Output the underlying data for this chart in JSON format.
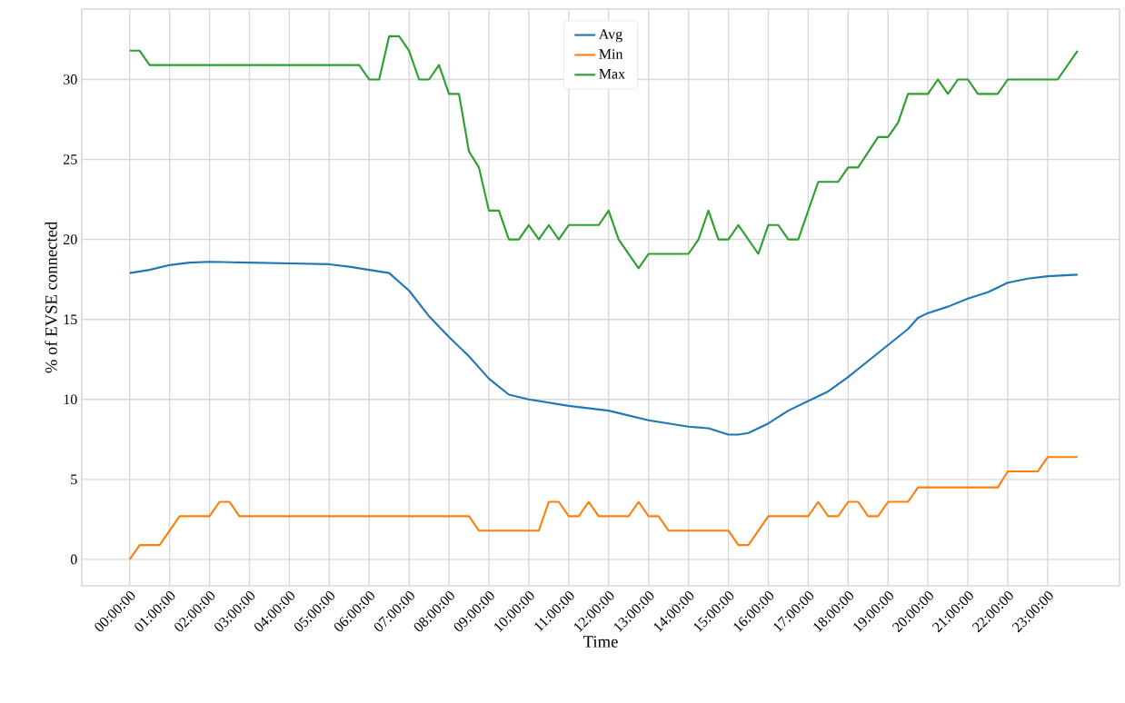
{
  "chart_data": {
    "type": "line",
    "xlabel": "Time",
    "ylabel": "% of EVSE connected",
    "xlim": [
      -1.2,
      24.8
    ],
    "ylim": [
      -1.65,
      34.4
    ],
    "xticks": [
      {
        "value": 0,
        "label": "00:00:00"
      },
      {
        "value": 1,
        "label": "01:00:00"
      },
      {
        "value": 2,
        "label": "02:00:00"
      },
      {
        "value": 3,
        "label": "03:00:00"
      },
      {
        "value": 4,
        "label": "04:00:00"
      },
      {
        "value": 5,
        "label": "05:00:00"
      },
      {
        "value": 6,
        "label": "06:00:00"
      },
      {
        "value": 7,
        "label": "07:00:00"
      },
      {
        "value": 8,
        "label": "08:00:00"
      },
      {
        "value": 9,
        "label": "09:00:00"
      },
      {
        "value": 10,
        "label": "10:00:00"
      },
      {
        "value": 11,
        "label": "11:00:00"
      },
      {
        "value": 12,
        "label": "12:00:00"
      },
      {
        "value": 13,
        "label": "13:00:00"
      },
      {
        "value": 14,
        "label": "14:00:00"
      },
      {
        "value": 15,
        "label": "15:00:00"
      },
      {
        "value": 16,
        "label": "16:00:00"
      },
      {
        "value": 17,
        "label": "17:00:00"
      },
      {
        "value": 18,
        "label": "18:00:00"
      },
      {
        "value": 19,
        "label": "19:00:00"
      },
      {
        "value": 20,
        "label": "20:00:00"
      },
      {
        "value": 21,
        "label": "21:00:00"
      },
      {
        "value": 22,
        "label": "22:00:00"
      },
      {
        "value": 23,
        "label": "23:00:00"
      }
    ],
    "yticks": [
      0,
      5,
      10,
      15,
      20,
      25,
      30
    ],
    "grid": true,
    "legend": "top",
    "series": [
      {
        "name": "Avg",
        "color": "#1f77b4",
        "x": [
          0,
          0.5,
          1,
          1.5,
          2,
          3,
          4,
          5,
          5.5,
          6,
          6.5,
          7,
          7.5,
          8,
          8.5,
          9,
          9.5,
          10,
          11,
          12,
          13,
          14,
          14.5,
          15,
          15.25,
          15.5,
          16,
          16.5,
          17,
          17.5,
          18,
          18.5,
          19,
          19.5,
          19.75,
          20,
          20.5,
          21,
          21.5,
          22,
          22.5,
          23,
          23.75
        ],
        "values": [
          17.9,
          18.1,
          18.4,
          18.55,
          18.6,
          18.55,
          18.5,
          18.45,
          18.3,
          18.1,
          17.9,
          16.8,
          15.2,
          13.9,
          12.7,
          11.3,
          10.3,
          10.0,
          9.6,
          9.3,
          8.7,
          8.3,
          8.2,
          7.8,
          7.8,
          7.9,
          8.5,
          9.3,
          9.9,
          10.5,
          11.4,
          12.4,
          13.4,
          14.4,
          15.1,
          15.4,
          15.8,
          16.3,
          16.7,
          17.3,
          17.55,
          17.7,
          17.8
        ]
      },
      {
        "name": "Min",
        "color": "#ff7f0e",
        "x": [
          0,
          0.25,
          0.75,
          1.25,
          2,
          2.25,
          2.5,
          2.75,
          8.5,
          8.75,
          10.25,
          10.5,
          10.75,
          11,
          11.25,
          11.5,
          11.75,
          12.5,
          12.75,
          13,
          13.25,
          13.5,
          15,
          15.25,
          15.5,
          16,
          17,
          17.25,
          17.5,
          17.75,
          18,
          18.25,
          18.5,
          18.75,
          19,
          19.5,
          19.75,
          21.75,
          22,
          22.75,
          23,
          23.75
        ],
        "values": [
          0,
          0.9,
          0.9,
          2.7,
          2.7,
          3.6,
          3.6,
          2.7,
          2.7,
          1.8,
          1.8,
          3.6,
          3.6,
          2.7,
          2.7,
          3.6,
          2.7,
          2.7,
          3.6,
          2.7,
          2.7,
          1.8,
          1.8,
          0.9,
          0.9,
          2.7,
          2.7,
          3.6,
          2.7,
          2.7,
          3.6,
          3.6,
          2.7,
          2.7,
          3.6,
          3.6,
          4.5,
          4.5,
          5.5,
          5.5,
          6.4,
          6.4
        ]
      },
      {
        "name": "Max",
        "color": "#2ca02c",
        "x": [
          0,
          0.25,
          0.5,
          5.75,
          6,
          6.25,
          6.5,
          6.75,
          7,
          7.25,
          7.5,
          7.75,
          8,
          8.25,
          8.5,
          8.75,
          9,
          9.25,
          9.5,
          9.75,
          10,
          10.25,
          10.5,
          10.75,
          11,
          11.75,
          12,
          12.25,
          12.75,
          13,
          14,
          14.25,
          14.5,
          14.75,
          15,
          15.25,
          15.75,
          16,
          16.25,
          16.5,
          16.75,
          17.25,
          17.75,
          18,
          18.25,
          18.75,
          19,
          19.25,
          19.5,
          20,
          20.25,
          20.5,
          20.75,
          21,
          21.25,
          21.75,
          22,
          23.25,
          23.75
        ],
        "values": [
          31.8,
          31.8,
          30.9,
          30.9,
          30,
          30,
          32.7,
          32.7,
          31.8,
          30,
          30,
          30.9,
          29.1,
          29.1,
          25.5,
          24.5,
          21.8,
          21.8,
          20,
          20,
          20.9,
          20,
          20.9,
          20,
          20.9,
          20.9,
          21.8,
          20,
          18.2,
          19.1,
          19.1,
          20,
          21.8,
          20,
          20,
          20.9,
          19.1,
          20.9,
          20.9,
          20,
          20,
          23.6,
          23.6,
          24.5,
          24.5,
          26.4,
          26.4,
          27.3,
          29.1,
          29.1,
          30,
          29.1,
          30,
          30,
          29.1,
          29.1,
          30,
          30,
          31.8
        ]
      }
    ]
  }
}
